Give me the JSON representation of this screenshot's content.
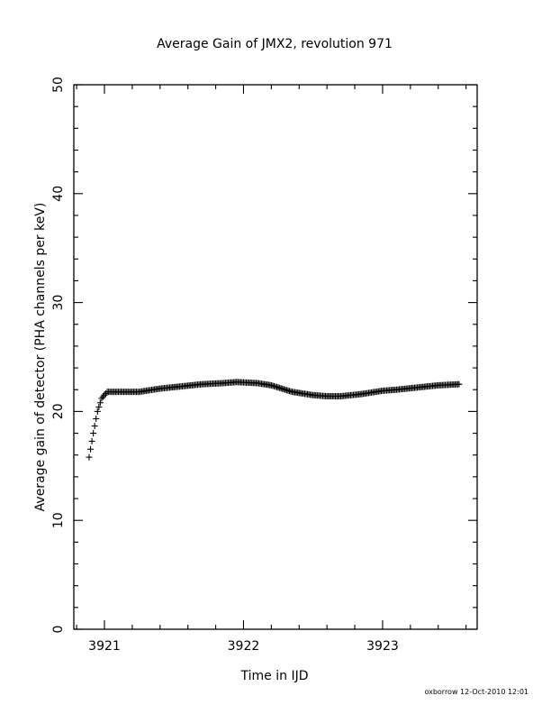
{
  "chart_data": {
    "type": "scatter",
    "marker": "plus",
    "title": "Average Gain of JMX2, revolution 971",
    "xlabel": "Time in IJD",
    "ylabel": "Average gain of detector (PHA channels per keV)",
    "xlim": [
      3920.78,
      3923.68
    ],
    "ylim": [
      0,
      50
    ],
    "xticks": [
      3921,
      3922,
      3923
    ],
    "yticks": [
      0,
      10,
      20,
      30,
      40,
      50
    ],
    "grid": false,
    "legend": "none",
    "footer": "oxborrow 12-Oct-2010 12:01",
    "curve_knots": [
      [
        3920.89,
        15.8
      ],
      [
        3920.92,
        18.0
      ],
      [
        3920.95,
        20.0
      ],
      [
        3920.98,
        21.2
      ],
      [
        3921.02,
        21.8
      ],
      [
        3921.1,
        21.8
      ],
      [
        3921.25,
        21.8
      ],
      [
        3921.4,
        22.1
      ],
      [
        3921.55,
        22.3
      ],
      [
        3921.7,
        22.5
      ],
      [
        3921.85,
        22.6
      ],
      [
        3921.95,
        22.7
      ],
      [
        3922.1,
        22.6
      ],
      [
        3922.2,
        22.4
      ],
      [
        3922.35,
        21.8
      ],
      [
        3922.5,
        21.5
      ],
      [
        3922.6,
        21.4
      ],
      [
        3922.7,
        21.4
      ],
      [
        3922.85,
        21.6
      ],
      [
        3923.0,
        21.9
      ],
      [
        3923.1,
        22.0
      ],
      [
        3923.25,
        22.2
      ],
      [
        3923.4,
        22.4
      ],
      [
        3923.55,
        22.5
      ]
    ],
    "points_step": 0.01,
    "series_color": "#000000"
  }
}
